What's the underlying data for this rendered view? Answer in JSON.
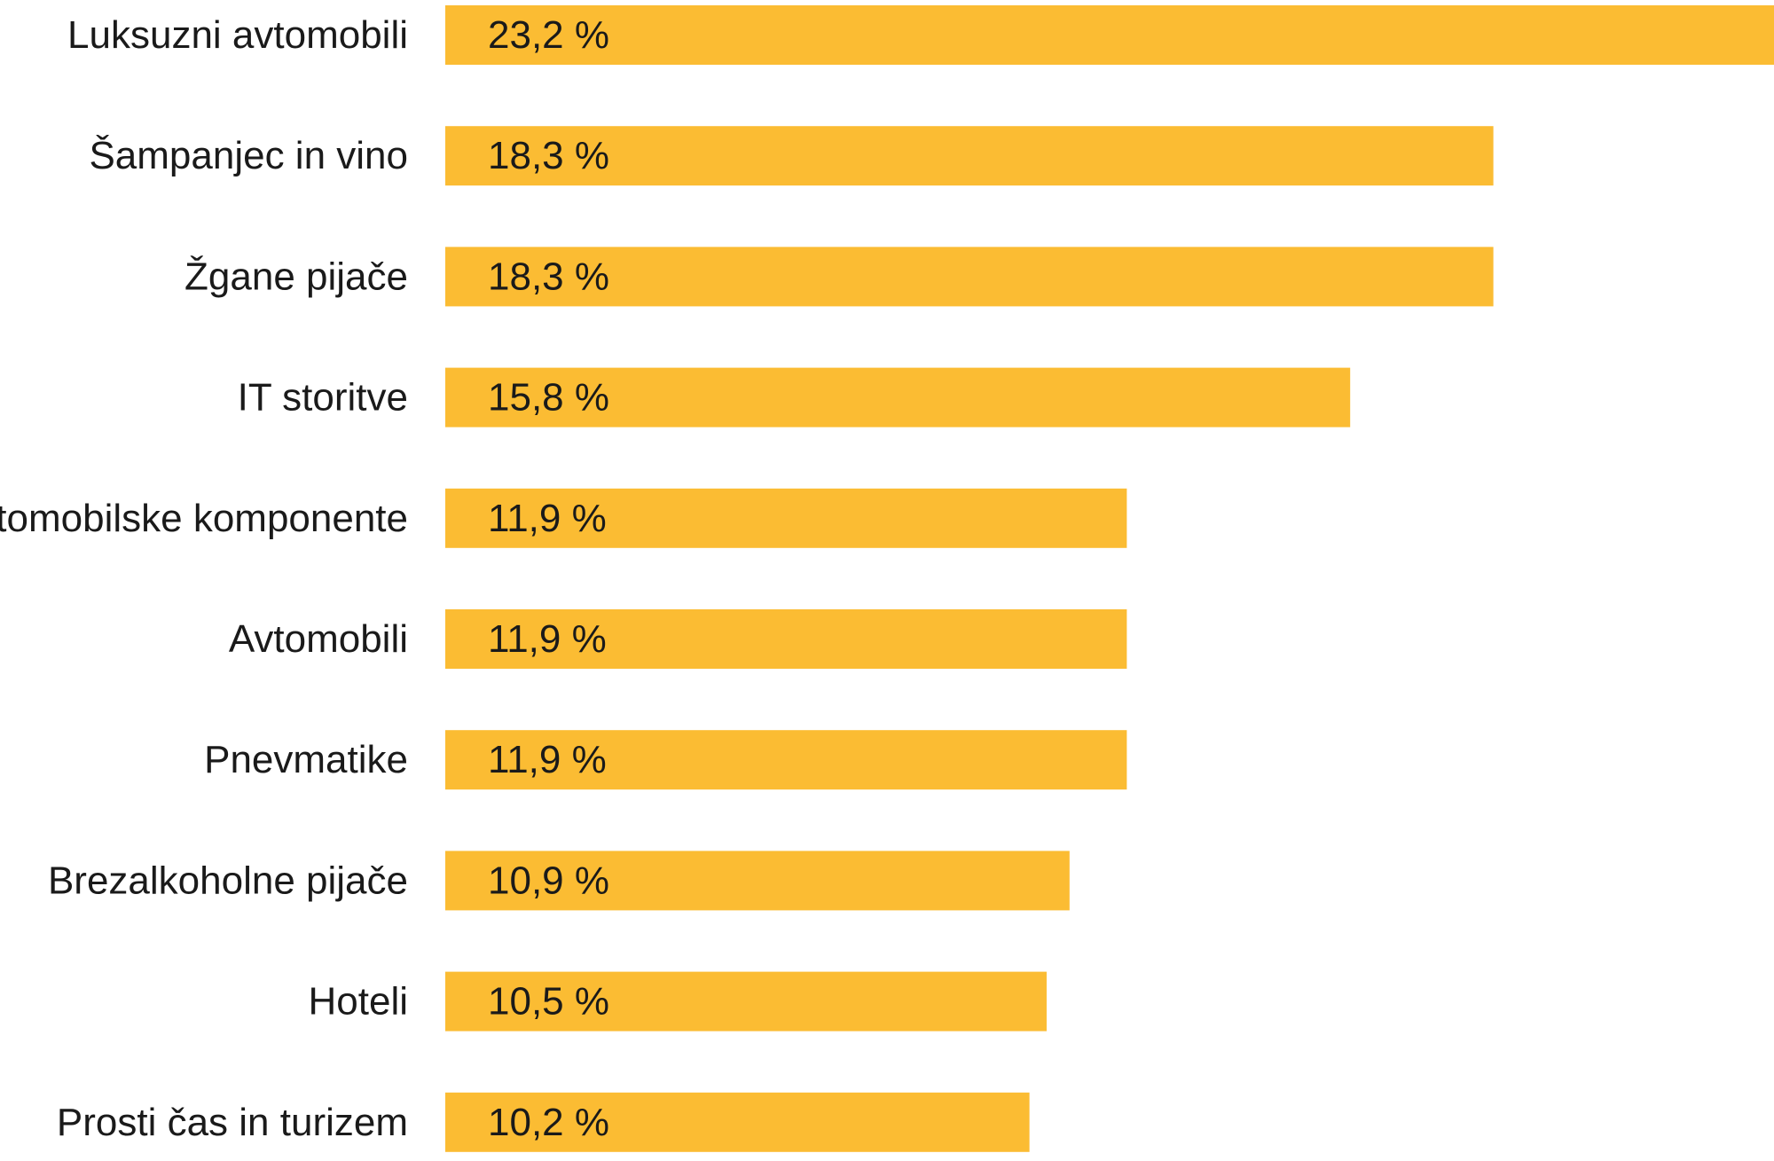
{
  "chart_data": {
    "type": "bar",
    "orientation": "horizontal",
    "categories": [
      "Luksuzni avtomobili",
      "Šampanjec in vino",
      "Žgane pijače",
      "IT storitve",
      "Avtomobilske komponente",
      "Avtomobili",
      "Pnevmatike",
      "Brezalkoholne pijače",
      "Hoteli",
      "Prosti čas in turizem"
    ],
    "values": [
      23.2,
      18.3,
      18.3,
      15.8,
      11.9,
      11.9,
      11.9,
      10.9,
      10.5,
      10.2
    ],
    "value_labels": [
      "23,2 %",
      "18,3 %",
      "18,3 %",
      "15,8 %",
      "11,9 %",
      "11,9 %",
      "11,9 %",
      "10,9 %",
      "10,5 %",
      "10,2 %"
    ],
    "xlim": [
      0,
      23.2
    ],
    "grid": false,
    "bar_color": "#FBBC33"
  }
}
